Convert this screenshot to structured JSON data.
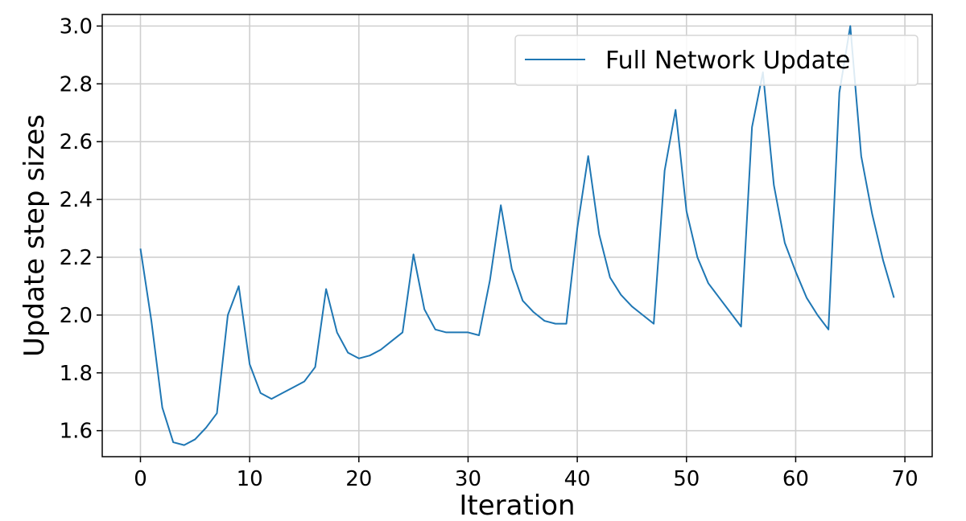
{
  "chart_data": {
    "type": "line",
    "title": "",
    "xlabel": "Iteration",
    "ylabel": "Update step sizes",
    "xlim": [
      -3.5,
      72.5
    ],
    "ylim": [
      1.51,
      3.04
    ],
    "xticks": [
      0,
      10,
      20,
      30,
      40,
      50,
      60,
      70
    ],
    "yticks": [
      1.6,
      1.8,
      2.0,
      2.2,
      2.4,
      2.6,
      2.8,
      3.0
    ],
    "xtick_labels": [
      "0",
      "10",
      "20",
      "30",
      "40",
      "50",
      "60",
      "70"
    ],
    "ytick_labels": [
      "1.6",
      "1.8",
      "2.0",
      "2.2",
      "2.4",
      "2.6",
      "2.8",
      "3.0"
    ],
    "grid": true,
    "legend_position": "top-right",
    "series": [
      {
        "name": "Full Network Update",
        "color": "#1f77b4",
        "x": [
          0,
          1,
          2,
          3,
          4,
          5,
          6,
          7,
          8,
          9,
          10,
          11,
          12,
          13,
          14,
          15,
          16,
          17,
          18,
          19,
          20,
          21,
          22,
          23,
          24,
          25,
          26,
          27,
          28,
          29,
          30,
          31,
          32,
          33,
          34,
          35,
          36,
          37,
          38,
          39,
          40,
          41,
          42,
          43,
          44,
          45,
          46,
          47,
          48,
          49,
          50,
          51,
          52,
          53,
          54,
          55,
          56,
          57,
          58,
          59,
          60,
          61,
          62,
          63,
          64,
          65,
          66,
          67,
          68,
          69
        ],
        "y": [
          2.23,
          1.98,
          1.68,
          1.56,
          1.55,
          1.57,
          1.61,
          1.66,
          2.0,
          2.1,
          1.83,
          1.73,
          1.71,
          1.73,
          1.75,
          1.77,
          1.82,
          2.09,
          1.94,
          1.87,
          1.85,
          1.86,
          1.88,
          1.91,
          1.94,
          2.21,
          2.02,
          1.95,
          1.94,
          1.94,
          1.94,
          1.93,
          2.12,
          2.38,
          2.16,
          2.05,
          2.01,
          1.98,
          1.97,
          1.97,
          2.3,
          2.55,
          2.28,
          2.13,
          2.07,
          2.03,
          2.0,
          1.97,
          2.5,
          2.71,
          2.36,
          2.2,
          2.11,
          2.06,
          2.01,
          1.96,
          2.65,
          2.84,
          2.45,
          2.25,
          2.15,
          2.06,
          2.0,
          1.95,
          2.77,
          3.0,
          2.55,
          2.35,
          2.19,
          2.06
        ]
      }
    ]
  }
}
